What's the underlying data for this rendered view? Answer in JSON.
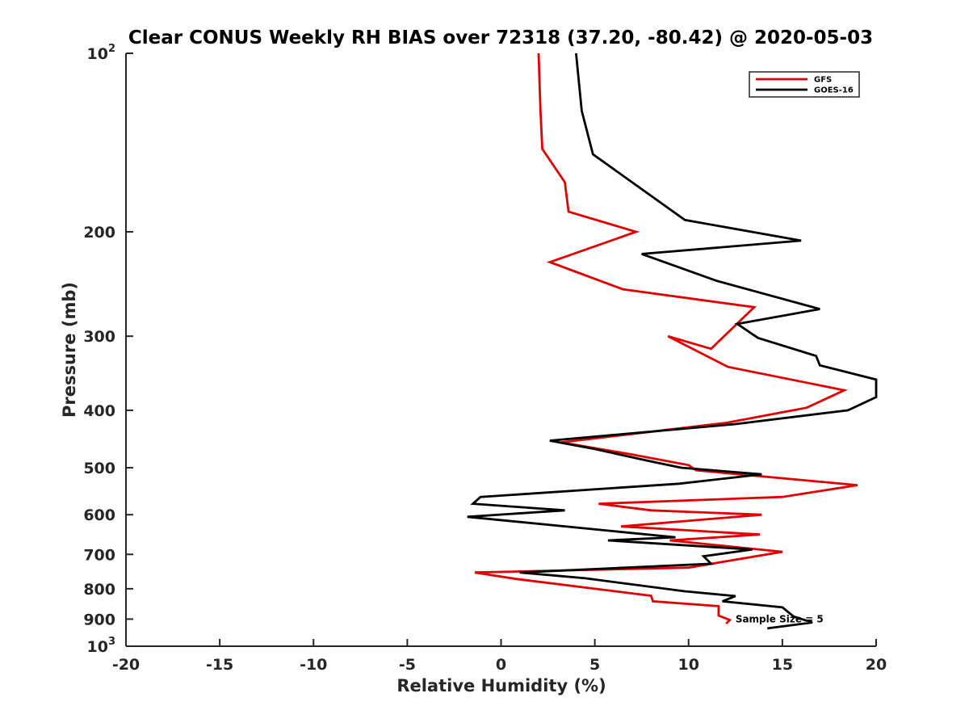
{
  "chart_data": {
    "type": "line",
    "title": "Clear CONUS Weekly RH BIAS over 72318 (37.20, -80.42) @ 2020-05-03",
    "xlabel": "Relative Humidity (%)",
    "ylabel": "Pressure (mb)",
    "xlim": [
      -20,
      20
    ],
    "ylim": [
      100,
      1000
    ],
    "y_scale": "log",
    "y_reversed": true,
    "x_ticks": [
      -20,
      -15,
      -10,
      -5,
      0,
      5,
      10,
      15,
      20
    ],
    "x_tick_labels": [
      "-20",
      "-15",
      "-10",
      "-5",
      "0",
      "5",
      "10",
      "15",
      "20"
    ],
    "y_ticks": [
      {
        "value": 100,
        "base": "10",
        "exp": "2"
      },
      {
        "value": 200,
        "label": "200"
      },
      {
        "value": 300,
        "label": "300"
      },
      {
        "value": 400,
        "label": "400"
      },
      {
        "value": 500,
        "label": "500"
      },
      {
        "value": 600,
        "label": "600"
      },
      {
        "value": 700,
        "label": "700"
      },
      {
        "value": 800,
        "label": "800"
      },
      {
        "value": 900,
        "label": "900"
      },
      {
        "value": 1000,
        "base": "10",
        "exp": "3"
      }
    ],
    "grid": false,
    "legend_position": "top-right",
    "series": [
      {
        "name": "GFS",
        "color": "#e00000",
        "points": [
          [
            2.0,
            100
          ],
          [
            2.1,
            125
          ],
          [
            2.2,
            145
          ],
          [
            3.4,
            165
          ],
          [
            3.6,
            185
          ],
          [
            7.2,
            200
          ],
          [
            2.6,
            225
          ],
          [
            6.5,
            250
          ],
          [
            13.5,
            268
          ],
          [
            11.2,
            315
          ],
          [
            8.9,
            300
          ],
          [
            12.1,
            338
          ],
          [
            18.3,
            370
          ],
          [
            16.3,
            396
          ],
          [
            12.0,
            420
          ],
          [
            3.2,
            453
          ],
          [
            7.0,
            475
          ],
          [
            10.0,
            495
          ],
          [
            10.4,
            505
          ],
          [
            19.0,
            535
          ],
          [
            15.0,
            560
          ],
          [
            5.2,
            575
          ],
          [
            8.0,
            590
          ],
          [
            13.9,
            600
          ],
          [
            6.4,
            628
          ],
          [
            13.8,
            648
          ],
          [
            9.0,
            663
          ],
          [
            15.0,
            693
          ],
          [
            10.0,
            737
          ],
          [
            -1.4,
            751
          ],
          [
            0.8,
            770
          ],
          [
            8.0,
            822
          ],
          [
            8.1,
            840
          ],
          [
            11.6,
            856
          ],
          [
            11.6,
            888
          ],
          [
            12.2,
            903
          ],
          [
            12.0,
            916
          ]
        ]
      },
      {
        "name": "GOES-16",
        "color": "#000000",
        "points": [
          [
            4.0,
            100
          ],
          [
            4.3,
            125
          ],
          [
            4.9,
            148
          ],
          [
            9.8,
            191
          ],
          [
            16.0,
            207
          ],
          [
            7.5,
            218
          ],
          [
            11.5,
            242
          ],
          [
            17.0,
            270
          ],
          [
            12.6,
            286
          ],
          [
            13.7,
            302
          ],
          [
            16.8,
            324
          ],
          [
            17.0,
            336
          ],
          [
            20.0,
            355
          ],
          [
            20.0,
            380
          ],
          [
            18.5,
            400
          ],
          [
            12.5,
            422
          ],
          [
            2.6,
            450
          ],
          [
            5.0,
            465
          ],
          [
            8.0,
            488
          ],
          [
            9.6,
            500
          ],
          [
            13.9,
            513
          ],
          [
            9.5,
            532
          ],
          [
            -1.1,
            560
          ],
          [
            -1.5,
            575
          ],
          [
            3.4,
            590
          ],
          [
            -1.8,
            605
          ],
          [
            9.3,
            655
          ],
          [
            5.7,
            663
          ],
          [
            13.4,
            687
          ],
          [
            10.8,
            705
          ],
          [
            11.2,
            726
          ],
          [
            1.0,
            751
          ],
          [
            4.5,
            768
          ],
          [
            9.8,
            808
          ],
          [
            12.5,
            823
          ],
          [
            11.8,
            840
          ],
          [
            15.0,
            860
          ],
          [
            15.6,
            891
          ],
          [
            16.6,
            912
          ],
          [
            14.2,
            933
          ]
        ]
      }
    ],
    "annotations": [
      {
        "text": "Sample Size = 5",
        "x": 12.5,
        "y": 900
      }
    ]
  }
}
